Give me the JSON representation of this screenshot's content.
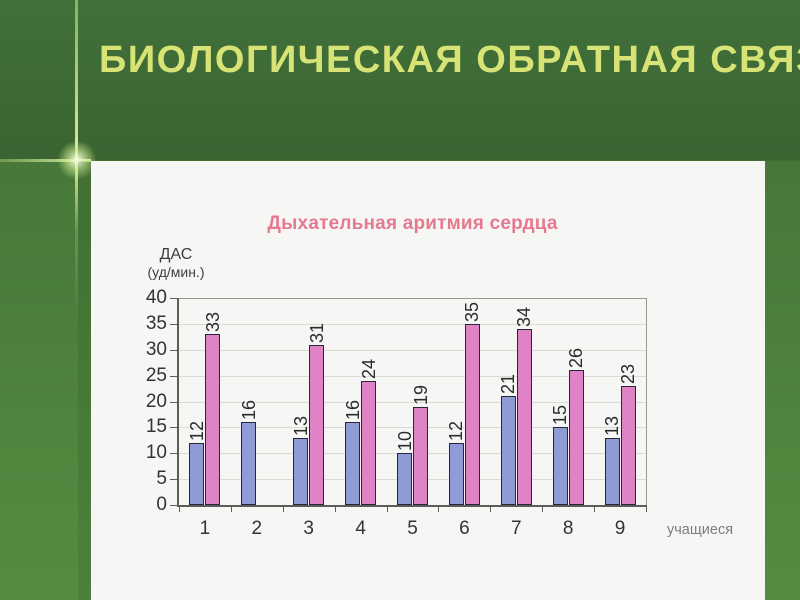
{
  "slide": {
    "title": "БИОЛОГИЧЕСКАЯ ОБРАТНАЯ СВЯЗЬ"
  },
  "theme": {
    "title_color": "#d8e376",
    "bg_top": "#41703a",
    "bg_bottom": "#548c41",
    "accent_line_color": "#cdea96",
    "panel_bg": "#f6f7f5"
  },
  "chart_data": {
    "type": "bar",
    "title": "Дыхательная аритмия сердца",
    "title_color": "#e5798f",
    "ylabel": "ДАС (уд/мин.)",
    "ylabel_lines": [
      "ДАС",
      "(уд/мин.)"
    ],
    "xlabel": "учащиеся",
    "categories": [
      "1",
      "2",
      "3",
      "4",
      "5",
      "6",
      "7",
      "8",
      "9"
    ],
    "series": [
      {
        "name": "series-blue",
        "color": "#909bd6",
        "values": [
          12,
          16,
          13,
          16,
          10,
          12,
          21,
          15,
          13
        ]
      },
      {
        "name": "series-pink",
        "color": "#df82c6",
        "values": [
          33,
          null,
          31,
          24,
          19,
          35,
          34,
          26,
          23
        ]
      }
    ],
    "ylim": [
      0,
      40
    ],
    "ytick_step": 5,
    "grid": true,
    "legend": "none",
    "value_labels": "rotated-90"
  }
}
